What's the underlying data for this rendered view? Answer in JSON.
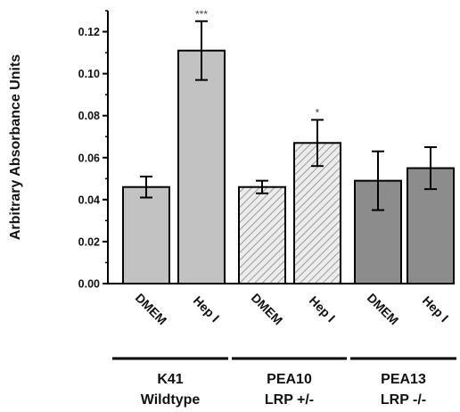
{
  "chart_data": {
    "type": "bar",
    "ylabel": "Arbitrary Absorbance Units",
    "ylim": [
      0,
      0.13
    ],
    "yticks": [
      "0.00",
      "0.02",
      "0.04",
      "0.06",
      "0.08",
      "0.10",
      "0.12"
    ],
    "grid": false,
    "categories": [
      "DMEM",
      "Hep I",
      "DMEM",
      "Hep I",
      "DMEM",
      "Hep I"
    ],
    "values": [
      0.046,
      0.111,
      0.046,
      0.067,
      0.049,
      0.055
    ],
    "errors": [
      0.005,
      0.014,
      0.003,
      0.011,
      0.014,
      0.01
    ],
    "significance": [
      "",
      "***",
      "",
      "*",
      "",
      ""
    ],
    "bar_fills": [
      "light-gray",
      "light-gray",
      "hatched",
      "hatched",
      "dark-gray",
      "dark-gray"
    ],
    "groups": [
      {
        "line1": "K41",
        "line2": "Wildtype"
      },
      {
        "line1": "PEA10",
        "line2": "LRP +/-"
      },
      {
        "line1": "PEA13",
        "line2": "LRP -/-"
      }
    ],
    "colors": {
      "light_gray": "#c2c2c2",
      "dark_gray": "#8c8c8c",
      "hatch_bg": "#ececec",
      "hatch_line": "#9a9a9a"
    }
  }
}
